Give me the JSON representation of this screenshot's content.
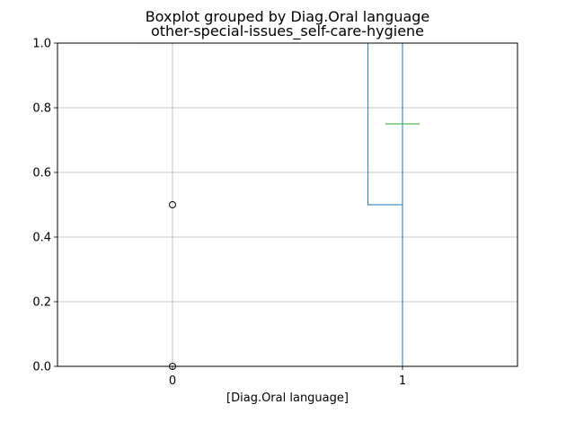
{
  "chart_data": {
    "type": "boxplot",
    "title": "Boxplot grouped by Diag.Oral language",
    "subtitle": "other-special-issues_self-care-hygiene",
    "xlabel": "[Diag.Oral language]",
    "ylabel": "",
    "categories": [
      "0",
      "1"
    ],
    "ylim": [
      0,
      1
    ],
    "yticks": [
      0.0,
      0.2,
      0.4,
      0.6,
      0.8,
      1.0
    ],
    "ytick_labels": [
      "0.0",
      "0.2",
      "0.4",
      "0.6",
      "0.8",
      "1.0"
    ],
    "grid": true,
    "boxes": [
      {
        "category": "0",
        "whisker_low": 1.0,
        "q1": 1.0,
        "median": 1.0,
        "q3": 1.0,
        "whisker_high": 1.0,
        "outliers": [
          0.5,
          0.0
        ]
      },
      {
        "category": "1",
        "whisker_low": 0.0,
        "q1": 0.5,
        "median": 0.75,
        "q3": 1.0,
        "whisker_high": 1.0,
        "outliers": []
      }
    ],
    "colors": {
      "box": "#1f77b4",
      "median": "#2ca02c",
      "grid": "#b0b0b0",
      "outlier": "#000000"
    }
  }
}
